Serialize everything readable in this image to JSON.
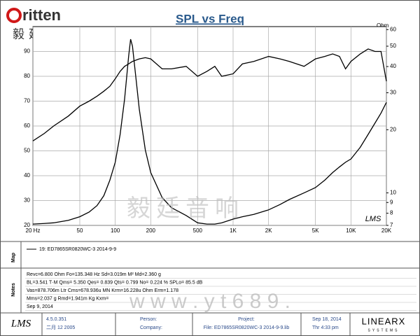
{
  "header": {
    "logo_text": "ritten",
    "chinese": "毅廷音响"
  },
  "chart_data": {
    "type": "line",
    "title": "SPL vs Freq",
    "xscale": "log",
    "x": [
      20,
      25,
      30,
      40,
      50,
      60,
      70,
      80,
      90,
      100,
      110,
      120,
      130,
      135,
      140,
      150,
      160,
      180,
      200,
      250,
      300,
      400,
      500,
      600,
      700,
      800,
      1000,
      1200,
      1500,
      2000,
      2500,
      3000,
      4000,
      5000,
      6000,
      7000,
      8000,
      9000,
      10000,
      12000,
      14000,
      16000,
      18000,
      20000
    ],
    "xlim": [
      20,
      20000
    ],
    "xticks": [
      {
        "value": 20,
        "label": "20 Hz"
      },
      50,
      100,
      200,
      500,
      {
        "value": 1000,
        "label": "1K"
      },
      {
        "value": 2000,
        "label": "2K"
      },
      {
        "value": 5000,
        "label": "5K"
      },
      {
        "value": 10000,
        "label": "10K"
      },
      {
        "value": 20000,
        "label": "20K"
      }
    ],
    "ylim": [
      20,
      100
    ],
    "yticks": [
      20,
      30,
      40,
      50,
      60,
      70,
      80,
      90
    ],
    "y2label": "Ohm",
    "y2scale": "log",
    "y2lim": [
      7,
      62
    ],
    "y2ticks": [
      7,
      8,
      9,
      10,
      20,
      30,
      40,
      50,
      60
    ],
    "grid": true,
    "annotation": "LMS",
    "series": [
      {
        "color": "#000000",
        "values": [
          54,
          57,
          60,
          64,
          68,
          70,
          72,
          74,
          76,
          79,
          82,
          84,
          85,
          85.5,
          86,
          86.5,
          87,
          87.5,
          87,
          83,
          83,
          84,
          80,
          82,
          84,
          80,
          81,
          85,
          86,
          88,
          87,
          86,
          84,
          87,
          88,
          89,
          88,
          83,
          86,
          89,
          91,
          90,
          90,
          78
        ]
      },
      {
        "color": "#000000",
        "axis": "y2",
        "values": [
          7.1,
          7.15,
          7.2,
          7.4,
          7.7,
          8.1,
          8.7,
          9.7,
          11.5,
          14,
          19,
          28,
          45,
          54,
          50,
          35,
          25,
          16,
          12.5,
          9.5,
          8.5,
          7.8,
          7.2,
          7.1,
          7.1,
          7.2,
          7.5,
          7.7,
          7.9,
          8.3,
          8.8,
          9.3,
          10,
          10.6,
          11.5,
          12.5,
          13.3,
          14,
          14.5,
          16.5,
          19,
          21.5,
          24,
          27
        ]
      }
    ]
  },
  "watermark": {
    "chinese": "毅廷音响",
    "url": "w w w . y t 6 8 9 ."
  },
  "map": {
    "label": "Map",
    "legend": "19: ED7865SR0820WC-3    2014-9-9"
  },
  "notes": {
    "label": "Notes",
    "lines": [
      "Revc=6.800 Ohm  Fo=135.348 Hz  Sd=3.019m M²  Md=2.360 g",
      "BL=3.541 T·M  Qms= 5.350  Qes= 0.839  Qts= 0.799  No= 0.224 %  SPLo= 85.5 dB",
      "Vas=878.706m Ltr  Cms=678.936u MN  Krm=16.228u Ohm  Erm=1.178",
      "Mms=2.037 g  Rmd=1.941m Kg  Kxm=",
      "Sep 9, 2014"
    ]
  },
  "footer": {
    "logo": "LMS",
    "version": "4.5.0.351",
    "date": "二月 12 2005",
    "person": "Person:",
    "company": "Company:",
    "project": "Project:",
    "file": "File: ED7865SR0820WC-3    2014-9-9.lib",
    "print_date": "Sep 18, 2014",
    "print_time": "Thr  4:33 pm",
    "brand": "LINEARX",
    "brand_sub": "SYSTEMS"
  }
}
